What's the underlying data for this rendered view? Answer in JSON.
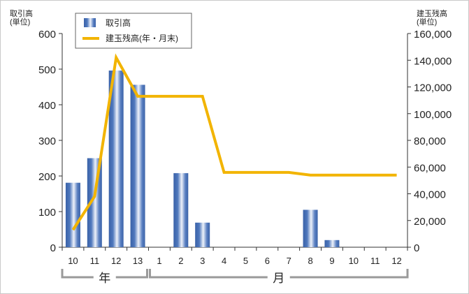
{
  "chart_data": {
    "type": "bar",
    "categories": [
      "10",
      "11",
      "12",
      "13",
      "1",
      "2",
      "3",
      "4",
      "5",
      "6",
      "7",
      "8",
      "9",
      "10",
      "11",
      "12"
    ],
    "series": [
      {
        "name": "取引高",
        "type": "bar",
        "axis": "left",
        "values": [
          181,
          250,
          496,
          456,
          0,
          208,
          69,
          0,
          0,
          0,
          0,
          105,
          20,
          0,
          0,
          0
        ]
      },
      {
        "name": "建玉残高(年・月末)",
        "type": "line",
        "axis": "right",
        "values": [
          13000,
          38000,
          142000,
          113000,
          113000,
          113000,
          113000,
          56000,
          56000,
          56000,
          56000,
          54000,
          54000,
          54000,
          54000,
          54000
        ]
      }
    ],
    "y_left": {
      "label_line1": "取引高",
      "label_line2": "(単位)",
      "ylim": [
        0,
        600
      ],
      "ticks": [
        0,
        100,
        200,
        300,
        400,
        500,
        600
      ],
      "tick_labels": [
        "0",
        "100",
        "200",
        "300",
        "400",
        "500",
        "600"
      ]
    },
    "y_right": {
      "label_line1": "建玉残高",
      "label_line2": "(単位)",
      "ylim": [
        0,
        160000
      ],
      "ticks": [
        0,
        20000,
        40000,
        60000,
        80000,
        100000,
        120000,
        140000,
        160000
      ],
      "tick_labels": [
        "0",
        "20,000",
        "40,000",
        "60,000",
        "80,000",
        "100,000",
        "120,000",
        "140,000",
        "160,000"
      ]
    },
    "groups": [
      {
        "label": "年",
        "from": 0,
        "to": 3
      },
      {
        "label": "月",
        "from": 4,
        "to": 15
      }
    ],
    "legend": {
      "position": "top-left",
      "entries": [
        "取引高",
        "建玉残高(年・月末)"
      ]
    },
    "grid": false,
    "colors": {
      "bar_dark": "#3a62a8",
      "bar_light": "#e8eef8",
      "line": "#f2b400",
      "axis": "#333333",
      "bracket": "#9a9a9a"
    }
  }
}
